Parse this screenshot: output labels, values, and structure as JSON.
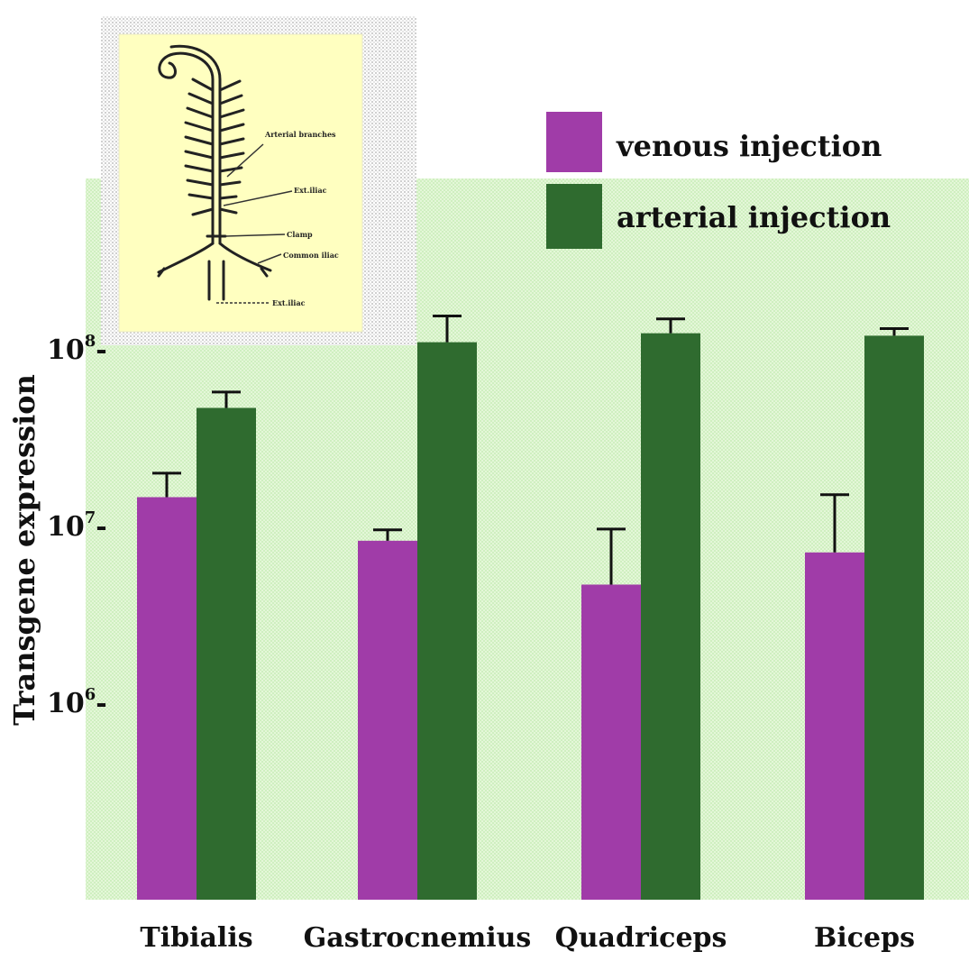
{
  "chart_data": {
    "type": "bar",
    "title": "",
    "ylabel": "Transgene expression",
    "xlabel": "",
    "scale": "log",
    "ylim": [
      100000,
      1000000000
    ],
    "yticks": [
      {
        "value": 1000000,
        "base": "10",
        "exp": "6"
      },
      {
        "value": 10000000,
        "base": "10",
        "exp": "7"
      },
      {
        "value": 100000000,
        "base": "10",
        "exp": "8"
      }
    ],
    "categories": [
      "Tibialis",
      "Gastrocnemius",
      "Quadriceps",
      "Biceps"
    ],
    "series": [
      {
        "name": "venous injection",
        "color": "#a03ca8",
        "values": [
          15000000,
          8500000,
          4800000,
          7300000
        ],
        "errors": [
          20500000,
          9800000,
          9900000,
          15500000
        ]
      },
      {
        "name": "arterial injection",
        "color": "#2f6b2f",
        "values": [
          48000000,
          113000000,
          127000000,
          123000000
        ],
        "errors": [
          59000000,
          159000000,
          153000000,
          135000000
        ]
      }
    ],
    "legend": "top-right",
    "inset": {
      "description": "schematic of vasculature",
      "labels": [
        "Arterial branches",
        "Ext.iliac",
        "Clamp",
        "Common iliac",
        "Ext.iliac"
      ]
    }
  }
}
